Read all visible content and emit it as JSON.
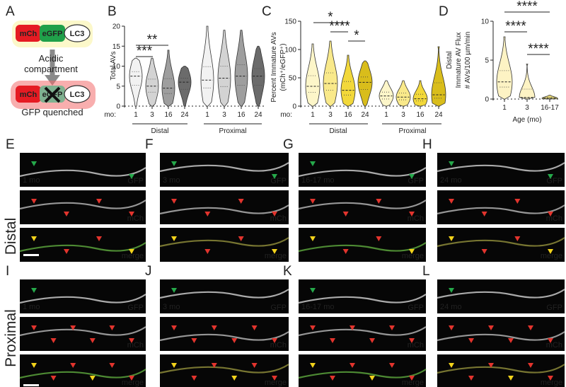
{
  "panel_letters": [
    "A",
    "B",
    "C",
    "D",
    "E",
    "F",
    "G",
    "H",
    "I",
    "J",
    "K",
    "L"
  ],
  "panel_a": {
    "construct": [
      "mCh",
      "eGFP",
      "LC3"
    ],
    "arrow_label": [
      "Acidic",
      "compartment"
    ],
    "result_label": "GFP quenched"
  },
  "chart_data": [
    {
      "panel": "B",
      "type": "violin",
      "ylabel": "Total AVs",
      "ylim": [
        0,
        20
      ],
      "yticks": [
        "0",
        "5",
        "10",
        "15",
        "20"
      ],
      "xlabel_prefix": "mo:",
      "categories": [
        "1",
        "3",
        "16",
        "24",
        "1",
        "3",
        "16",
        "24"
      ],
      "groups": [
        "Distal",
        "Proximal"
      ],
      "medians": [
        7.5,
        5,
        4.5,
        6,
        6.5,
        7,
        7.5,
        7.5
      ],
      "maxes": [
        12,
        12,
        14,
        10,
        20,
        19,
        19,
        15
      ],
      "colors": [
        "#f2f2f2",
        "#d3d3d3",
        "#9e9e9e",
        "#6b6b6b",
        "#f2f2f2",
        "#d3d3d3",
        "#9e9e9e",
        "#6b6b6b"
      ],
      "significance": [
        "***",
        "**"
      ]
    },
    {
      "panel": "C",
      "type": "violin",
      "ylabel": [
        "Percent Immature AVs",
        "(mCh⁺/eGFP⁺)"
      ],
      "ylim": [
        0,
        150
      ],
      "yticks": [
        "0",
        "50",
        "100",
        "150"
      ],
      "xlabel_prefix": "mo:",
      "categories": [
        "1",
        "3",
        "16",
        "24",
        "1",
        "3",
        "16",
        "24"
      ],
      "groups": [
        "Distal",
        "Proximal"
      ],
      "medians": [
        35,
        40,
        28,
        42,
        18,
        16,
        13,
        20
      ],
      "maxes": [
        110,
        115,
        90,
        80,
        45,
        45,
        45,
        105
      ],
      "colors": [
        "#fdf6c9",
        "#f9e98a",
        "#f2d83a",
        "#d9bd1b",
        "#fdf6c9",
        "#f9e98a",
        "#f2d83a",
        "#d9bd1b"
      ],
      "significance": [
        "*",
        "****",
        "*"
      ]
    },
    {
      "panel": "D",
      "type": "violin",
      "ylabel": [
        "Distal",
        "Immature AV Flux",
        "# AVs/100 µm/min"
      ],
      "ylim": [
        0,
        10
      ],
      "yticks": [
        "0",
        "5",
        "10"
      ],
      "xlabel": "Age (mo)",
      "categories": [
        "1",
        "3",
        "16-17"
      ],
      "medians": [
        2.2,
        0.2,
        0.1
      ],
      "maxes": [
        8,
        4.5,
        0.5
      ],
      "colors": [
        "#fdf3c4",
        "#fdf3c4",
        "#e6d777"
      ],
      "significance": [
        "****",
        "****",
        "****"
      ]
    }
  ],
  "micrographs": {
    "distal_label": "Distal",
    "proximal_label": "Proximal",
    "channels": [
      "GFP",
      "mCh",
      "merge"
    ],
    "ages": {
      "E": "1 mo",
      "F": "3 mo",
      "G": "16-17 mo",
      "H": "24 mo",
      "I": "1 mo",
      "J": "3 mo",
      "K": "16-17 mo",
      "L": "24 mo"
    }
  }
}
